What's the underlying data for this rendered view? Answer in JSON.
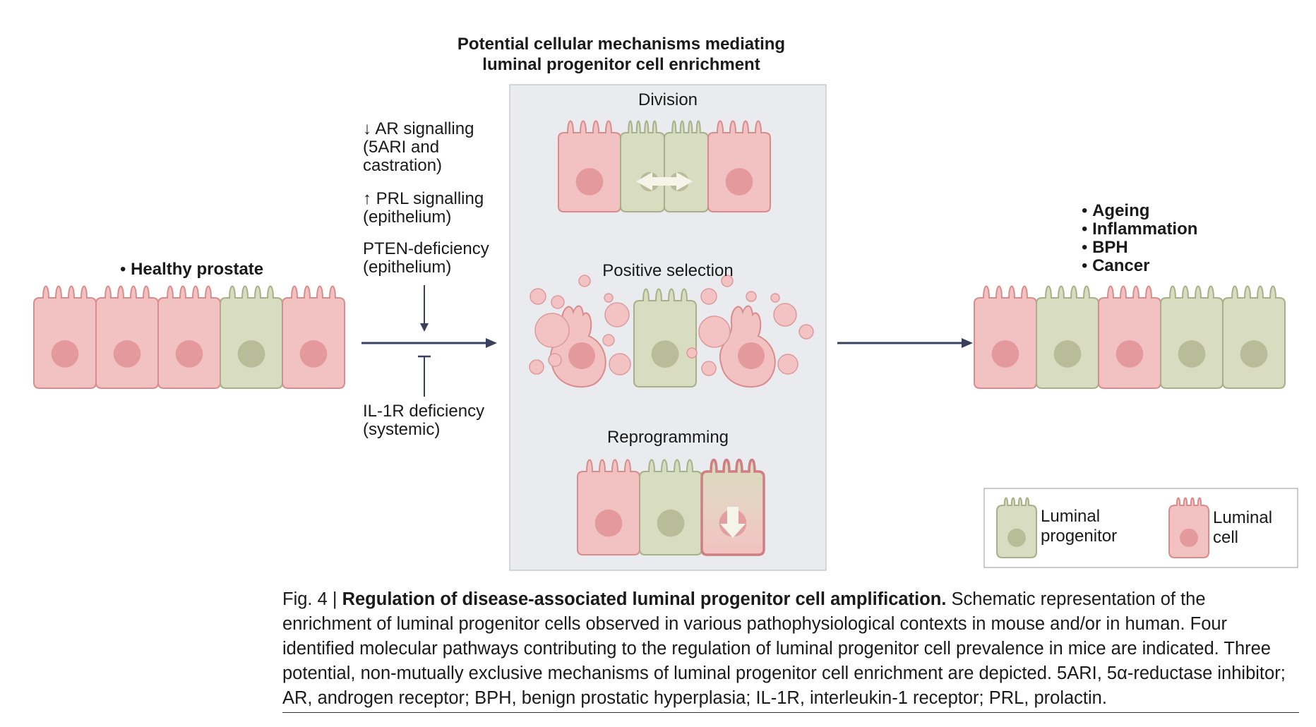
{
  "colors": {
    "luminal_cell_fill": "#f2c2c2",
    "luminal_cell_stroke": "#d98c8c",
    "luminal_nucleus": "#e49a9c",
    "progenitor_fill": "#d8dcc0",
    "progenitor_stroke": "#a9b088",
    "progenitor_nucleus": "#b8bc98",
    "panel_fill": "#eaebef",
    "panel_stroke": "#c9cbd3",
    "arrow": "#3a3f5c"
  },
  "diagram": {
    "title": [
      "Potential cellular mechanisms mediating",
      "luminal progenitor cell enrichment"
    ],
    "healthy": {
      "label": "Healthy prostate"
    },
    "regulators": {
      "ar": [
        "↓ AR signalling",
        "(5ARI and",
        "castration)"
      ],
      "prl": [
        "↑ PRL signalling",
        "(epithelium)"
      ],
      "pten": [
        "PTEN-deficiency",
        "(epithelium)"
      ],
      "il1r": [
        "IL-1R deficiency",
        "(systemic)"
      ]
    },
    "mechanisms": {
      "division": "Division",
      "positive_selection": "Positive selection",
      "reprogramming": "Reprogramming"
    },
    "contexts": [
      "Ageing",
      "Inflammation",
      "BPH",
      "Cancer"
    ],
    "legend": {
      "progenitor": [
        "Luminal",
        "progenitor"
      ],
      "luminal": [
        "Luminal",
        "cell"
      ]
    },
    "rows": {
      "healthy": [
        "luminal",
        "luminal",
        "luminal",
        "progenitor",
        "luminal"
      ],
      "disease": [
        "luminal",
        "progenitor",
        "luminal",
        "progenitor",
        "progenitor"
      ]
    }
  },
  "caption": {
    "prefix": "Fig. 4 | ",
    "title": "Regulation of disease-associated luminal progenitor cell amplification.",
    "body": " Schematic representation of the enrichment of luminal progenitor cells observed in various pathophysiological contexts in mouse and/or in human. Four identified molecular pathways contributing to the regulation of luminal progenitor cell prevalence in mice are indicated. Three potential, non-mutually exclusive mechanisms of luminal progenitor cell enrichment are depicted. 5ARI, 5α-reductase inhibitor; AR, androgen receptor; BPH, benign prostatic hyperplasia; IL-1R, interleukin-1 receptor; PRL, prolactin."
  }
}
